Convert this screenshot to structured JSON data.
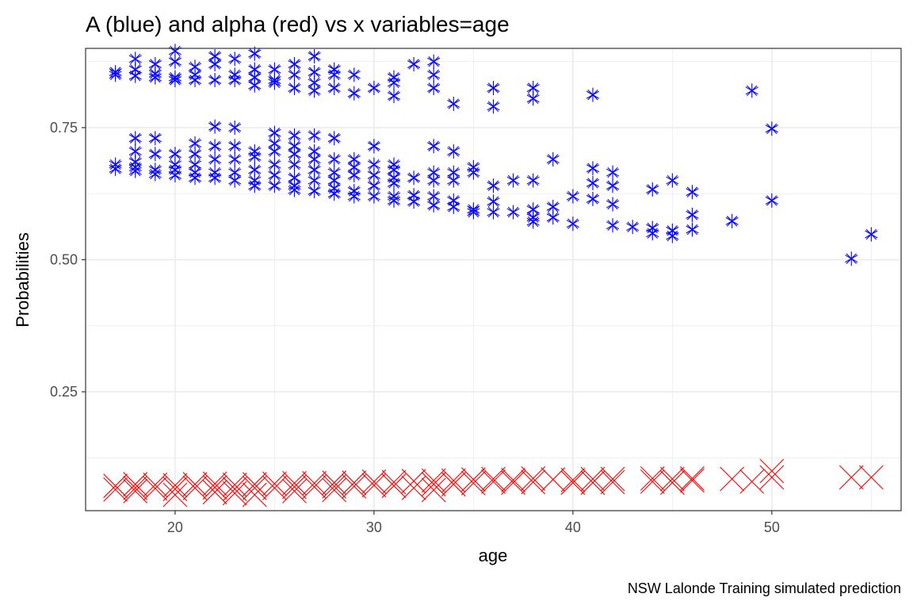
{
  "chart_data": {
    "type": "scatter",
    "title": "A (blue) and alpha (red) vs x variables=age",
    "xlabel": "age",
    "ylabel": "Probabilities",
    "caption": "NSW Lalonde Training simulated prediction",
    "xlim": [
      15.5,
      56.5
    ],
    "ylim": [
      0.025,
      0.9
    ],
    "x_ticks": [
      20,
      30,
      40,
      50
    ],
    "y_ticks": [
      0.25,
      0.5,
      0.75
    ],
    "x_tick_labels": [
      "20",
      "30",
      "40",
      "50"
    ],
    "y_tick_labels": [
      "0.25",
      "0.50",
      "0.75"
    ],
    "grid": true,
    "colors": {
      "A": "#0000ff",
      "alpha": "#ff0000",
      "frame": "#333333",
      "grid": "#ebebeb"
    },
    "series": [
      {
        "marker": "asterisk",
        "color": "#0000ff",
        "points": [
          [
            17,
            0.855
          ],
          [
            17,
            0.85
          ],
          [
            17,
            0.68
          ],
          [
            17,
            0.672
          ],
          [
            18,
            0.88
          ],
          [
            18,
            0.86
          ],
          [
            18,
            0.848
          ],
          [
            18,
            0.73
          ],
          [
            18,
            0.705
          ],
          [
            18,
            0.685
          ],
          [
            18,
            0.675
          ],
          [
            18,
            0.668
          ],
          [
            19,
            0.87
          ],
          [
            19,
            0.852
          ],
          [
            19,
            0.845
          ],
          [
            19,
            0.73
          ],
          [
            19,
            0.7
          ],
          [
            19,
            0.67
          ],
          [
            19,
            0.662
          ],
          [
            20,
            0.895
          ],
          [
            20,
            0.875
          ],
          [
            20,
            0.845
          ],
          [
            20,
            0.84
          ],
          [
            20,
            0.7
          ],
          [
            20,
            0.68
          ],
          [
            20,
            0.67
          ],
          [
            20,
            0.66
          ],
          [
            21,
            0.865
          ],
          [
            21,
            0.85
          ],
          [
            21,
            0.84
          ],
          [
            21,
            0.72
          ],
          [
            21,
            0.7
          ],
          [
            21,
            0.68
          ],
          [
            21,
            0.665
          ],
          [
            21,
            0.655
          ],
          [
            22,
            0.885
          ],
          [
            22,
            0.87
          ],
          [
            22,
            0.84
          ],
          [
            22,
            0.752
          ],
          [
            22,
            0.715
          ],
          [
            22,
            0.69
          ],
          [
            22,
            0.665
          ],
          [
            22,
            0.655
          ],
          [
            23,
            0.88
          ],
          [
            23,
            0.85
          ],
          [
            23,
            0.84
          ],
          [
            23,
            0.75
          ],
          [
            23,
            0.715
          ],
          [
            23,
            0.69
          ],
          [
            23,
            0.665
          ],
          [
            23,
            0.65
          ],
          [
            24,
            0.89
          ],
          [
            24,
            0.86
          ],
          [
            24,
            0.845
          ],
          [
            24,
            0.83
          ],
          [
            24,
            0.705
          ],
          [
            24,
            0.695
          ],
          [
            24,
            0.67
          ],
          [
            24,
            0.65
          ],
          [
            24,
            0.64
          ],
          [
            25,
            0.86
          ],
          [
            25,
            0.84
          ],
          [
            25,
            0.835
          ],
          [
            25,
            0.74
          ],
          [
            25,
            0.72
          ],
          [
            25,
            0.705
          ],
          [
            25,
            0.68
          ],
          [
            25,
            0.66
          ],
          [
            25,
            0.64
          ],
          [
            26,
            0.87
          ],
          [
            26,
            0.85
          ],
          [
            26,
            0.825
          ],
          [
            26,
            0.735
          ],
          [
            26,
            0.715
          ],
          [
            26,
            0.7
          ],
          [
            26,
            0.68
          ],
          [
            26,
            0.655
          ],
          [
            26,
            0.64
          ],
          [
            26,
            0.632
          ],
          [
            27,
            0.885
          ],
          [
            27,
            0.855
          ],
          [
            27,
            0.835
          ],
          [
            27,
            0.82
          ],
          [
            27,
            0.735
          ],
          [
            27,
            0.705
          ],
          [
            27,
            0.69
          ],
          [
            27,
            0.67
          ],
          [
            27,
            0.65
          ],
          [
            27,
            0.63
          ],
          [
            28,
            0.86
          ],
          [
            28,
            0.85
          ],
          [
            28,
            0.825
          ],
          [
            28,
            0.73
          ],
          [
            28,
            0.69
          ],
          [
            28,
            0.665
          ],
          [
            28,
            0.65
          ],
          [
            28,
            0.635
          ],
          [
            28,
            0.625
          ],
          [
            29,
            0.85
          ],
          [
            29,
            0.815
          ],
          [
            29,
            0.69
          ],
          [
            29,
            0.675
          ],
          [
            29,
            0.66
          ],
          [
            29,
            0.63
          ],
          [
            29,
            0.62
          ],
          [
            30,
            0.825
          ],
          [
            30,
            0.715
          ],
          [
            30,
            0.68
          ],
          [
            30,
            0.66
          ],
          [
            30,
            0.64
          ],
          [
            30,
            0.62
          ],
          [
            31,
            0.845
          ],
          [
            31,
            0.835
          ],
          [
            31,
            0.81
          ],
          [
            31,
            0.68
          ],
          [
            31,
            0.67
          ],
          [
            31,
            0.655
          ],
          [
            31,
            0.645
          ],
          [
            31,
            0.62
          ],
          [
            31,
            0.612
          ],
          [
            32,
            0.87
          ],
          [
            32,
            0.655
          ],
          [
            32,
            0.622
          ],
          [
            32,
            0.61
          ],
          [
            33,
            0.875
          ],
          [
            33,
            0.85
          ],
          [
            33,
            0.825
          ],
          [
            33,
            0.715
          ],
          [
            33,
            0.665
          ],
          [
            33,
            0.65
          ],
          [
            33,
            0.62
          ],
          [
            33,
            0.603
          ],
          [
            34,
            0.795
          ],
          [
            34,
            0.705
          ],
          [
            34,
            0.665
          ],
          [
            34,
            0.65
          ],
          [
            34,
            0.612
          ],
          [
            34,
            0.6
          ],
          [
            35,
            0.675
          ],
          [
            35,
            0.665
          ],
          [
            35,
            0.595
          ],
          [
            35,
            0.59
          ],
          [
            36,
            0.825
          ],
          [
            36,
            0.79
          ],
          [
            36,
            0.64
          ],
          [
            36,
            0.61
          ],
          [
            36,
            0.59
          ],
          [
            37,
            0.65
          ],
          [
            37,
            0.59
          ],
          [
            38,
            0.825
          ],
          [
            38,
            0.805
          ],
          [
            38,
            0.65
          ],
          [
            38,
            0.595
          ],
          [
            38,
            0.58
          ],
          [
            38,
            0.572
          ],
          [
            39,
            0.69
          ],
          [
            39,
            0.6
          ],
          [
            39,
            0.58
          ],
          [
            40,
            0.62
          ],
          [
            40,
            0.568
          ],
          [
            41,
            0.812
          ],
          [
            41,
            0.673
          ],
          [
            41,
            0.645
          ],
          [
            41,
            0.615
          ],
          [
            42,
            0.665
          ],
          [
            42,
            0.64
          ],
          [
            42,
            0.605
          ],
          [
            42,
            0.565
          ],
          [
            43,
            0.562
          ],
          [
            44,
            0.633
          ],
          [
            44,
            0.56
          ],
          [
            44,
            0.55
          ],
          [
            45,
            0.65
          ],
          [
            45,
            0.555
          ],
          [
            45,
            0.545
          ],
          [
            46,
            0.628
          ],
          [
            46,
            0.585
          ],
          [
            46,
            0.557
          ],
          [
            48,
            0.573
          ],
          [
            49,
            0.82
          ],
          [
            50,
            0.748
          ],
          [
            50,
            0.612
          ],
          [
            54,
            0.502
          ],
          [
            55,
            0.548
          ]
        ]
      },
      {
        "marker": "cross",
        "color": "#ff0000",
        "points": [
          [
            17,
            0.072
          ],
          [
            17,
            0.065
          ],
          [
            18,
            0.075
          ],
          [
            18,
            0.068
          ],
          [
            18,
            0.062
          ],
          [
            19,
            0.074
          ],
          [
            19,
            0.067
          ],
          [
            20,
            0.073
          ],
          [
            20,
            0.066
          ],
          [
            20,
            0.055
          ],
          [
            21,
            0.075
          ],
          [
            21,
            0.068
          ],
          [
            22,
            0.076
          ],
          [
            22,
            0.069
          ],
          [
            22,
            0.06
          ],
          [
            23,
            0.074
          ],
          [
            23,
            0.066
          ],
          [
            23,
            0.058
          ],
          [
            24,
            0.075
          ],
          [
            24,
            0.068
          ],
          [
            24,
            0.055
          ],
          [
            25,
            0.076
          ],
          [
            25,
            0.068
          ],
          [
            26,
            0.077
          ],
          [
            26,
            0.07
          ],
          [
            26,
            0.062
          ],
          [
            27,
            0.077
          ],
          [
            27,
            0.07
          ],
          [
            28,
            0.078
          ],
          [
            28,
            0.071
          ],
          [
            28,
            0.064
          ],
          [
            29,
            0.078
          ],
          [
            29,
            0.071
          ],
          [
            30,
            0.08
          ],
          [
            30,
            0.073
          ],
          [
            31,
            0.079
          ],
          [
            31,
            0.072
          ],
          [
            32,
            0.081
          ],
          [
            32,
            0.068
          ],
          [
            33,
            0.082
          ],
          [
            33,
            0.075
          ],
          [
            33,
            0.064
          ],
          [
            34,
            0.082
          ],
          [
            34,
            0.075
          ],
          [
            35,
            0.084
          ],
          [
            35,
            0.077
          ],
          [
            36,
            0.085
          ],
          [
            36,
            0.08
          ],
          [
            37,
            0.083
          ],
          [
            37,
            0.078
          ],
          [
            38,
            0.086
          ],
          [
            38,
            0.079
          ],
          [
            39,
            0.084
          ],
          [
            40,
            0.083
          ],
          [
            40,
            0.078
          ],
          [
            41,
            0.085
          ],
          [
            41,
            0.078
          ],
          [
            42,
            0.085
          ],
          [
            42,
            0.079
          ],
          [
            44,
            0.086
          ],
          [
            44,
            0.08
          ],
          [
            45,
            0.085
          ],
          [
            45,
            0.078
          ],
          [
            46,
            0.086
          ],
          [
            46,
            0.082
          ],
          [
            48,
            0.085
          ],
          [
            49,
            0.08
          ],
          [
            50,
            0.1
          ],
          [
            50,
            0.088
          ],
          [
            54,
            0.088
          ],
          [
            55,
            0.088
          ]
        ]
      }
    ]
  }
}
